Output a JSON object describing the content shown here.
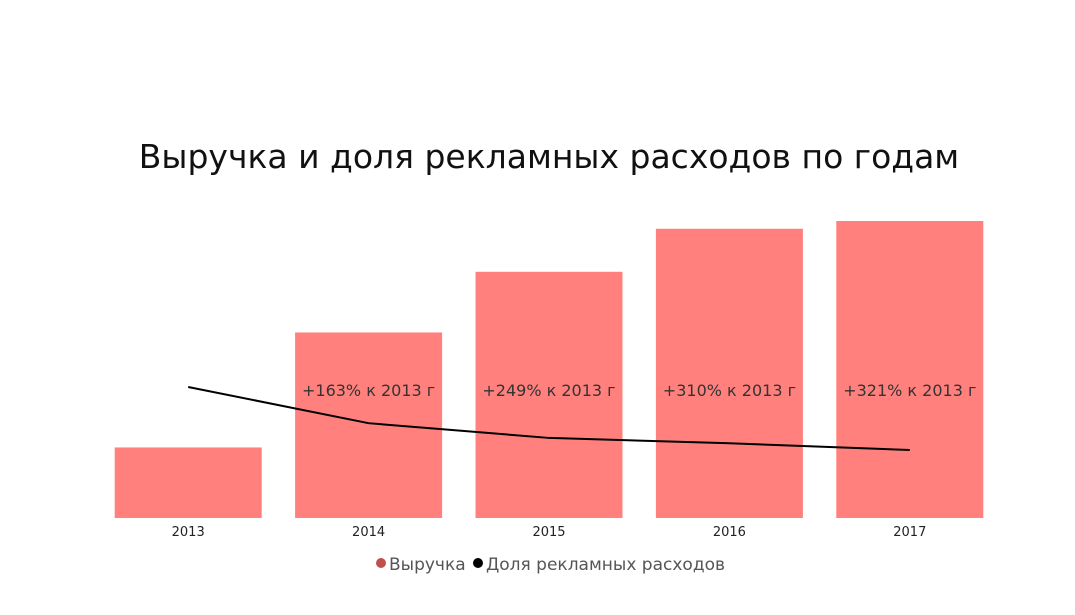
{
  "chart_data": {
    "type": "bar",
    "title": "Выручка и доля рекламных расходов по годам",
    "categories": [
      "2013",
      "2014",
      "2015",
      "2016",
      "2017"
    ],
    "series": [
      {
        "name": "Выручка",
        "type": "bar",
        "values": [
          100,
          263,
          349,
          410,
          421
        ],
        "data_labels": [
          "",
          "+163% к 2013 г",
          "+249% к 2013 г",
          "+310% к 2013 г",
          "+321% к 2013 г"
        ]
      },
      {
        "name": "Доля рекламных расходов",
        "type": "line",
        "values": [
          100,
          73,
          62,
          58,
          53
        ]
      }
    ],
    "legend_position": "bottom-center",
    "grid": false,
    "colors": {
      "bar": "#ff807c",
      "line": "#000000",
      "legend_bar_marker": "#c0504d",
      "legend_line_marker": "#000000"
    }
  }
}
